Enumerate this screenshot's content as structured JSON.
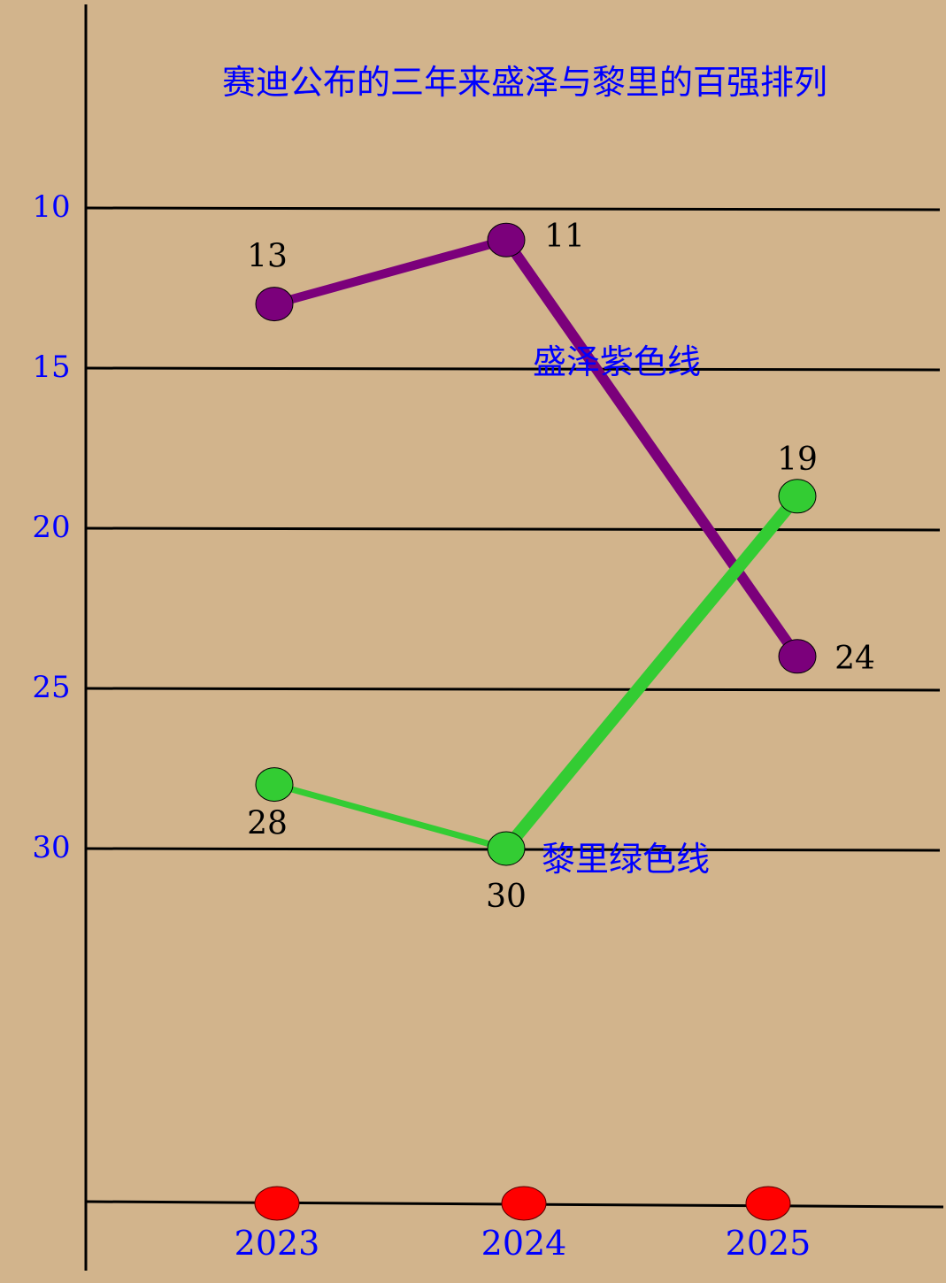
{
  "colors": {
    "background": "#D2B48C",
    "axis": "#000000",
    "accent_text": "#0000FF",
    "purple_series": "#7B007B",
    "green_series": "#33CC33",
    "year_marker": "#FF0000",
    "data_label": "#000000"
  },
  "chart_data": {
    "type": "line",
    "title": "赛迪公布的三年来盛泽与黎里的百强排列",
    "xlabel": "",
    "ylabel": "",
    "y_inverted": true,
    "ylim": [
      5,
      35
    ],
    "grid": true,
    "y_ticks": [
      {
        "value": 10,
        "label": "10"
      },
      {
        "value": 15,
        "label": "15"
      },
      {
        "value": 20,
        "label": "20"
      },
      {
        "value": 25,
        "label": "25"
      },
      {
        "value": 30,
        "label": "30"
      }
    ],
    "categories": [
      "2023",
      "2024",
      "2025"
    ],
    "series": [
      {
        "label": "盛泽紫色线",
        "values": [
          13,
          11,
          24
        ],
        "color": "#7B007B"
      },
      {
        "label": "黎里绿色线",
        "values": [
          28,
          30,
          19
        ],
        "color": "#33CC33"
      }
    ]
  }
}
